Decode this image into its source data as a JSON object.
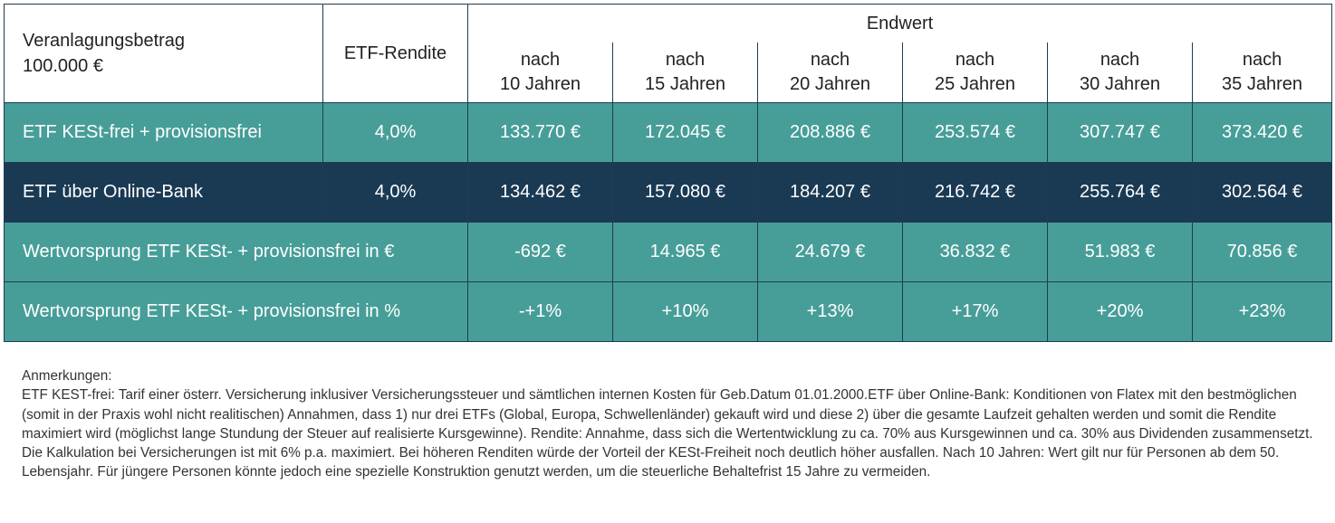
{
  "table": {
    "header": {
      "amount_label": "Veranlagungsbetrag",
      "amount_value": "100.000 €",
      "rendite_label": "ETF-Rendite",
      "endwert_label": "Endwert",
      "years": [
        {
          "line1": "nach",
          "line2": "10 Jahren"
        },
        {
          "line1": "nach",
          "line2": "15 Jahren"
        },
        {
          "line1": "nach",
          "line2": "20 Jahren"
        },
        {
          "line1": "nach",
          "line2": "25 Jahren"
        },
        {
          "line1": "nach",
          "line2": "30 Jahren"
        },
        {
          "line1": "nach",
          "line2": "35 Jahren"
        }
      ]
    },
    "rows": [
      {
        "label": "ETF KESt-frei + provisionsfrei",
        "rendite": "4,0%",
        "values": [
          "133.770 €",
          "172.045 €",
          "208.886 €",
          "253.574 €",
          "307.747 €",
          "373.420 €"
        ]
      },
      {
        "label": "ETF über Online-Bank",
        "rendite": "4,0%",
        "values": [
          "134.462 €",
          "157.080 €",
          "184.207 €",
          "216.742 €",
          "255.764 €",
          "302.564 €"
        ]
      },
      {
        "label": "Wertvorsprung ETF KESt- + provisionsfrei in €",
        "values": [
          "-692 €",
          "14.965 €",
          "24.679 €",
          "36.832 €",
          "51.983 €",
          "70.856 €"
        ]
      },
      {
        "label": "Wertvorsprung ETF KESt- + provisionsfrei in %",
        "values": [
          "-+1%",
          "+10%",
          "+13%",
          "+17%",
          "+20%",
          "+23%"
        ]
      }
    ]
  },
  "notes": {
    "heading": "Anmerkungen:",
    "text": "ETF KEST-frei: Tarif einer österr. Versicherung inklusiver Versicherungssteuer und sämtlichen internen Kosten für Geb.Datum 01.01.2000.ETF über Online-Bank: Konditionen von Flatex mit den bestmöglichen (somit in der Praxis wohl nicht realitischen) Annahmen, dass 1) nur drei ETFs (Global, Europa, Schwellenländer) gekauft wird und diese 2) über die gesamte Laufzeit gehalten werden und somit die Rendite maximiert wird (möglichst lange Stundung der Steuer auf realisierte Kursgewinne). Rendite: Annahme, dass sich die Wertentwicklung zu ca. 70% aus Kursgewinnen und ca. 30% aus Dividenden zusammensetzt. Die Kalkulation bei Versicherungen ist mit 6% p.a. maximiert. Bei höheren Renditen würde der Vorteil der KESt-Freiheit noch deutlich höher ausfallen. Nach 10 Jahren: Wert gilt nur für Personen ab dem 50. Lebensjahr. Für jüngere Personen könnte jedoch eine spezielle Konstruktion genutzt werden, um die steuerliche Behaltefrist 15 Jahre zu vermeiden."
  },
  "colors": {
    "teal": "#479e98",
    "navy": "#1a3a54"
  }
}
